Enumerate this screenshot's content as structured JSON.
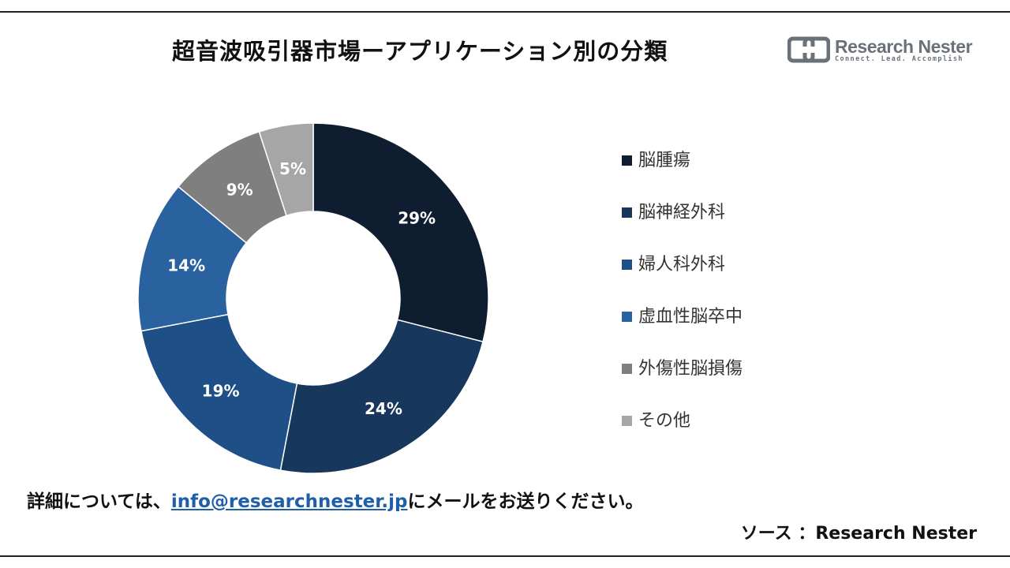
{
  "header": {
    "title": "超音波吸引器市場ーアプリケーション別の分類"
  },
  "logo": {
    "name": "Research Nester",
    "tagline": "Connect. Lead. Accomplish"
  },
  "chart_data": {
    "type": "pie",
    "donut": true,
    "categories": [
      "脳腫瘍",
      "脳神経外科",
      "婦人科外科",
      "虚血性脳卒中",
      "外傷性脳損傷",
      "その他"
    ],
    "values": [
      29,
      24,
      19,
      14,
      9,
      5
    ],
    "labels": [
      "29%",
      "24%",
      "19%",
      "14%",
      "9%",
      "5%"
    ],
    "colors": [
      "#0e1e30",
      "#17375c",
      "#1e4f86",
      "#2a62a0",
      "#7f7f7f",
      "#a6a6a6"
    ],
    "legend_placement": "right"
  },
  "footer": {
    "prefix": "詳細については、",
    "email": "info@researchnester.jp",
    "suffix": "にメールをお送りください。"
  },
  "source": {
    "label": "ソース",
    "text": "：Research Nester"
  }
}
